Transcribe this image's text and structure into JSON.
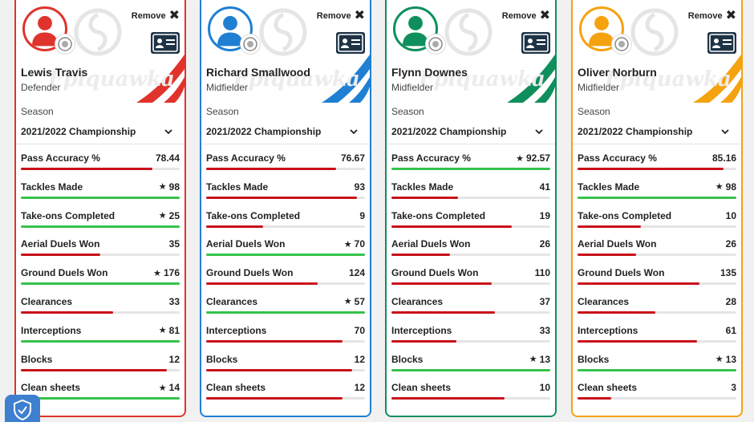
{
  "colors": {
    "high": "#36c24a",
    "low": "#c8111a"
  },
  "ui": {
    "remove_label": "Remove",
    "remove_glyph": "✖",
    "watermark": "Fpiquawka",
    "season_label": "Season",
    "star": "★"
  },
  "cards": [
    {
      "name": "Lewis Travis",
      "position": "Defender",
      "season": "2021/2022 Championship",
      "accent": "#e0332b",
      "club_icon": "blackburn-badge-icon",
      "stats": [
        {
          "label": "Pass Accuracy %",
          "value": "78.44",
          "star": false,
          "fill": 0.83,
          "best": false
        },
        {
          "label": "Tackles Made",
          "value": "98",
          "star": true,
          "fill": 1.0,
          "best": true
        },
        {
          "label": "Take-ons Completed",
          "value": "25",
          "star": true,
          "fill": 1.0,
          "best": true
        },
        {
          "label": "Aerial Duels Won",
          "value": "35",
          "star": false,
          "fill": 0.5,
          "best": false
        },
        {
          "label": "Ground Duels Won",
          "value": "176",
          "star": true,
          "fill": 1.0,
          "best": true
        },
        {
          "label": "Clearances",
          "value": "33",
          "star": false,
          "fill": 0.58,
          "best": false
        },
        {
          "label": "Interceptions",
          "value": "81",
          "star": true,
          "fill": 1.0,
          "best": true
        },
        {
          "label": "Blocks",
          "value": "12",
          "star": false,
          "fill": 0.92,
          "best": false
        },
        {
          "label": "Clean sheets",
          "value": "14",
          "star": true,
          "fill": 1.0,
          "best": true
        }
      ]
    },
    {
      "name": "Richard Smallwood",
      "position": "Midfielder",
      "season": "2021/2022 Championship",
      "accent": "#1f7fd3",
      "club_icon": "hull-badge-icon",
      "stats": [
        {
          "label": "Pass Accuracy %",
          "value": "76.67",
          "star": false,
          "fill": 0.82,
          "best": false
        },
        {
          "label": "Tackles Made",
          "value": "93",
          "star": false,
          "fill": 0.95,
          "best": false
        },
        {
          "label": "Take-ons Completed",
          "value": "9",
          "star": false,
          "fill": 0.36,
          "best": false
        },
        {
          "label": "Aerial Duels Won",
          "value": "70",
          "star": true,
          "fill": 1.0,
          "best": true
        },
        {
          "label": "Ground Duels Won",
          "value": "124",
          "star": false,
          "fill": 0.7,
          "best": false
        },
        {
          "label": "Clearances",
          "value": "57",
          "star": true,
          "fill": 1.0,
          "best": true
        },
        {
          "label": "Interceptions",
          "value": "70",
          "star": false,
          "fill": 0.86,
          "best": false
        },
        {
          "label": "Blocks",
          "value": "12",
          "star": false,
          "fill": 0.92,
          "best": false
        },
        {
          "label": "Clean sheets",
          "value": "12",
          "star": false,
          "fill": 0.86,
          "best": false
        }
      ]
    },
    {
      "name": "Flynn Downes",
      "position": "Midfielder",
      "season": "2021/2022 Championship",
      "accent": "#0f8f5c",
      "club_icon": "swansea-badge-icon",
      "stats": [
        {
          "label": "Pass Accuracy %",
          "value": "92.57",
          "star": true,
          "fill": 1.0,
          "best": true
        },
        {
          "label": "Tackles Made",
          "value": "41",
          "star": false,
          "fill": 0.42,
          "best": false
        },
        {
          "label": "Take-ons Completed",
          "value": "19",
          "star": false,
          "fill": 0.76,
          "best": false
        },
        {
          "label": "Aerial Duels Won",
          "value": "26",
          "star": false,
          "fill": 0.37,
          "best": false
        },
        {
          "label": "Ground Duels Won",
          "value": "110",
          "star": false,
          "fill": 0.63,
          "best": false
        },
        {
          "label": "Clearances",
          "value": "37",
          "star": false,
          "fill": 0.65,
          "best": false
        },
        {
          "label": "Interceptions",
          "value": "33",
          "star": false,
          "fill": 0.41,
          "best": false
        },
        {
          "label": "Blocks",
          "value": "13",
          "star": true,
          "fill": 1.0,
          "best": true
        },
        {
          "label": "Clean sheets",
          "value": "10",
          "star": false,
          "fill": 0.71,
          "best": false
        }
      ]
    },
    {
      "name": "Oliver Norburn",
      "position": "Midfielder",
      "season": "2021/2022 Championship",
      "accent": "#f5a20f",
      "club_icon": "peterborough-badge-icon",
      "stats": [
        {
          "label": "Pass Accuracy %",
          "value": "85.16",
          "star": false,
          "fill": 0.92,
          "best": false
        },
        {
          "label": "Tackles Made",
          "value": "98",
          "star": true,
          "fill": 1.0,
          "best": true
        },
        {
          "label": "Take-ons Completed",
          "value": "10",
          "star": false,
          "fill": 0.4,
          "best": false
        },
        {
          "label": "Aerial Duels Won",
          "value": "26",
          "star": false,
          "fill": 0.37,
          "best": false
        },
        {
          "label": "Ground Duels Won",
          "value": "135",
          "star": false,
          "fill": 0.77,
          "best": false
        },
        {
          "label": "Clearances",
          "value": "28",
          "star": false,
          "fill": 0.49,
          "best": false
        },
        {
          "label": "Interceptions",
          "value": "61",
          "star": false,
          "fill": 0.75,
          "best": false
        },
        {
          "label": "Blocks",
          "value": "13",
          "star": true,
          "fill": 1.0,
          "best": true
        },
        {
          "label": "Clean sheets",
          "value": "3",
          "star": false,
          "fill": 0.21,
          "best": false
        }
      ]
    }
  ]
}
